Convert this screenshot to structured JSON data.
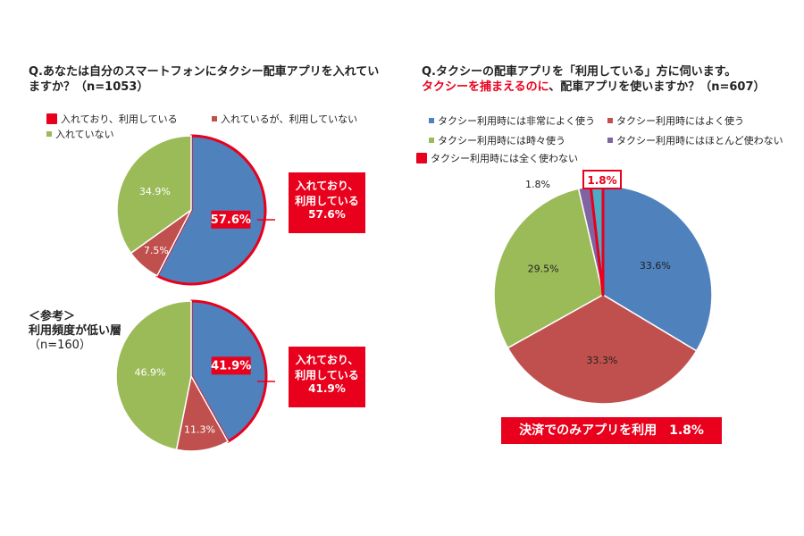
{
  "left": {
    "question_line1": "Q.あなたは自分のスマートフォンにタクシー配車アプリを入れてい",
    "question_line2": "ますか？（n=1053）",
    "legend": [
      "入れており、利用している",
      "入れているが、利用していない",
      "入れていない"
    ],
    "callout1": [
      "入れており、",
      "利用している",
      "57.6%"
    ],
    "ref_heading": "＜参考＞",
    "ref_sub": "利用頻度が低い層",
    "ref_n": "（n=160）",
    "callout2": [
      "入れており、",
      "利用している",
      "41.9%"
    ]
  },
  "right": {
    "question_line1": "Q.タクシーの配車アプリを「利用している」方に伺います。",
    "question_line2_red": "タクシーを捕まえるのに",
    "question_line2_rest": "、配車アプリを使いますか？（n=607）",
    "legend": [
      "タクシー利用時には非常によく使う",
      "タクシー利用時にはよく使う",
      "タクシー利用時には時々使う",
      "タクシー利用時にはほとんど使わない",
      "タクシー利用時には全く使わない"
    ],
    "bottom_callout": "決済でのみアプリを利用　1.8%"
  },
  "colors": {
    "blue": "#4f81bd",
    "red": "#c0504d",
    "green": "#9bbb59",
    "purple": "#8064a2",
    "teal": "#4bacc6",
    "highlight": "#e8001c"
  },
  "chart_data": [
    {
      "type": "pie",
      "categories": [
        "入れており、利用している",
        "入れているが、利用していない",
        "入れていない"
      ],
      "values": [
        57.6,
        7.5,
        34.9
      ],
      "labels": [
        "57.6%",
        "7.5%",
        "34.9%"
      ],
      "legend": "top"
    },
    {
      "type": "pie",
      "categories": [
        "入れており、利用している",
        "入れているが、利用していない",
        "入れていない"
      ],
      "values": [
        41.9,
        11.3,
        46.9
      ],
      "labels": [
        "41.9%",
        "11.3%",
        "46.9%"
      ],
      "legend": "none"
    },
    {
      "type": "pie",
      "categories": [
        "タクシー利用時には非常によく使う",
        "タクシー利用時にはよく使う",
        "タクシー利用時には時々使う",
        "タクシー利用時にはほとんど使わない",
        "タクシー利用時には全く使わない"
      ],
      "values": [
        33.6,
        33.3,
        29.5,
        1.8,
        1.8
      ],
      "labels": [
        "33.6%",
        "33.3%",
        "29.5%",
        "1.8%",
        "1.8%"
      ],
      "legend": "top"
    }
  ]
}
